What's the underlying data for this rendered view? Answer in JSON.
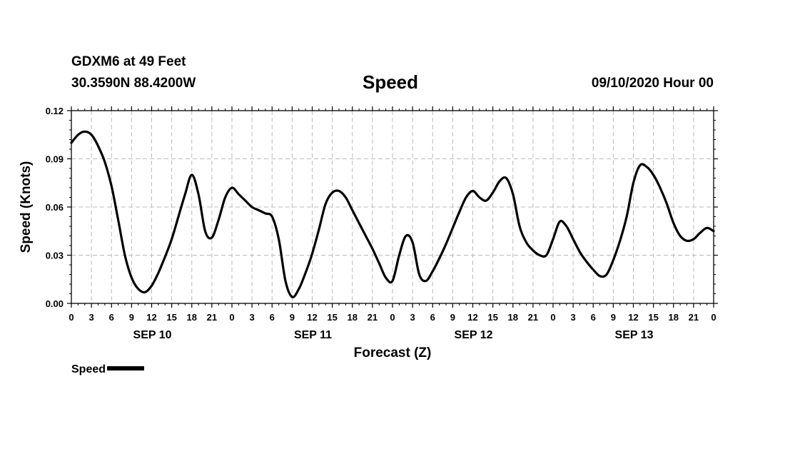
{
  "header": {
    "station": "GDXM6 at 49 Feet",
    "coords": "30.3590N 88.4200W",
    "title": "Speed",
    "run_time": "09/10/2020 Hour 00"
  },
  "legend": {
    "label": "Speed"
  },
  "chart_data": {
    "type": "line",
    "title": "Speed",
    "xlabel": "Forecast (Z)",
    "ylabel": "Speed (Knots)",
    "ylim": [
      0,
      0.12
    ],
    "yticks": [
      "0.00",
      "0.03",
      "0.06",
      "0.09",
      "0.12"
    ],
    "xlim": [
      0,
      96
    ],
    "x_tick_hours": [
      0,
      3,
      6,
      9,
      12,
      15,
      18,
      21,
      24,
      27,
      30,
      33,
      36,
      39,
      42,
      45,
      48,
      51,
      54,
      57,
      60,
      63,
      66,
      69,
      72,
      75,
      78,
      81,
      84,
      87,
      90,
      93,
      96
    ],
    "x_tick_labels": [
      "0",
      "3",
      "6",
      "9",
      "12",
      "15",
      "18",
      "21",
      "0",
      "3",
      "6",
      "9",
      "12",
      "15",
      "18",
      "21",
      "0",
      "3",
      "6",
      "9",
      "12",
      "15",
      "18",
      "21",
      "0",
      "3",
      "6",
      "9",
      "12",
      "15",
      "18",
      "21",
      "0"
    ],
    "date_labels": [
      {
        "label": "SEP 10",
        "hour": 12
      },
      {
        "label": "SEP 11",
        "hour": 36
      },
      {
        "label": "SEP 12",
        "hour": 60
      },
      {
        "label": "SEP 13",
        "hour": 84
      }
    ],
    "grid": true,
    "series": [
      {
        "name": "Speed",
        "color": "#000000",
        "x": [
          0,
          1,
          2,
          3,
          4,
          5,
          6,
          7,
          8,
          9,
          10,
          11,
          12,
          13,
          14,
          15,
          16,
          17,
          18,
          19,
          20,
          21,
          22,
          23,
          24,
          25,
          26,
          27,
          28,
          29,
          30,
          31,
          32,
          33,
          34,
          35,
          36,
          37,
          38,
          39,
          40,
          41,
          42,
          43,
          44,
          45,
          46,
          47,
          48,
          49,
          50,
          51,
          52,
          53,
          54,
          55,
          56,
          57,
          58,
          59,
          60,
          61,
          62,
          63,
          64,
          65,
          66,
          67,
          68,
          69,
          70,
          71,
          72,
          73,
          74,
          75,
          76,
          77,
          78,
          79,
          80,
          81,
          82,
          83,
          84,
          85,
          86,
          87,
          88,
          89,
          90,
          91,
          92,
          93,
          94,
          95,
          96
        ],
        "y": [
          0.1,
          0.105,
          0.107,
          0.105,
          0.098,
          0.088,
          0.073,
          0.052,
          0.03,
          0.016,
          0.009,
          0.007,
          0.011,
          0.019,
          0.029,
          0.04,
          0.054,
          0.068,
          0.08,
          0.068,
          0.045,
          0.041,
          0.052,
          0.066,
          0.072,
          0.068,
          0.064,
          0.06,
          0.058,
          0.056,
          0.054,
          0.04,
          0.014,
          0.004,
          0.009,
          0.019,
          0.031,
          0.046,
          0.062,
          0.069,
          0.07,
          0.066,
          0.058,
          0.05,
          0.042,
          0.034,
          0.025,
          0.016,
          0.014,
          0.03,
          0.042,
          0.038,
          0.018,
          0.014,
          0.02,
          0.028,
          0.037,
          0.047,
          0.057,
          0.066,
          0.07,
          0.066,
          0.064,
          0.069,
          0.076,
          0.078,
          0.068,
          0.048,
          0.038,
          0.033,
          0.03,
          0.03,
          0.04,
          0.051,
          0.048,
          0.04,
          0.032,
          0.026,
          0.021,
          0.017,
          0.018,
          0.027,
          0.039,
          0.054,
          0.075,
          0.086,
          0.085,
          0.08,
          0.072,
          0.062,
          0.05,
          0.042,
          0.039,
          0.04,
          0.044,
          0.047,
          0.045
        ]
      }
    ]
  }
}
